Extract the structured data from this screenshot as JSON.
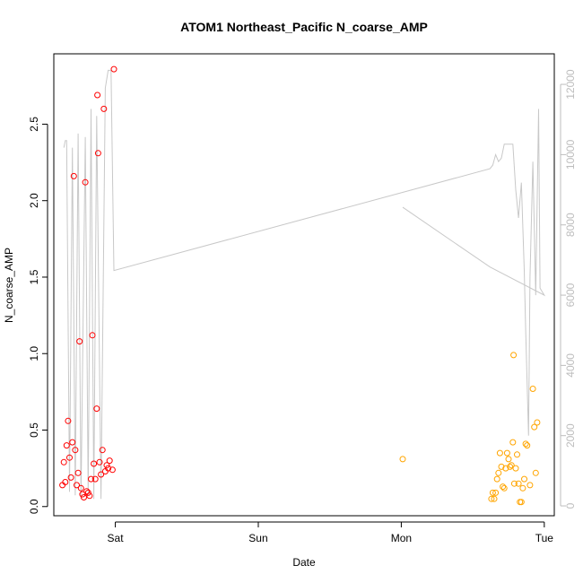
{
  "chart_data": {
    "type": "scatter",
    "title": "ATOM1 Northeast_Pacific N_coarse_AMP",
    "xlabel": "Date",
    "ylabel": "N_coarse_AMP",
    "x_ticks": [
      "Sat",
      "Sun",
      "Mon",
      "Tue"
    ],
    "x_tick_values": [
      2.0,
      3.0,
      4.0,
      5.0
    ],
    "xlim": [
      1.57,
      5.07
    ],
    "ylim": [
      -0.06,
      2.96
    ],
    "y_ticks": [
      "0.0",
      "0.5",
      "1.0",
      "1.5",
      "2.0",
      "2.5"
    ],
    "y_tick_values": [
      0.0,
      0.5,
      1.0,
      1.5,
      2.0,
      2.5
    ],
    "y2_ticks": [
      "0",
      "2000",
      "4000",
      "6000",
      "8000",
      "10000",
      "12000"
    ],
    "y2_tick_values": [
      0,
      2000,
      4000,
      6000,
      8000,
      10000,
      12000
    ],
    "y2lim": [
      -280,
      12870
    ],
    "grid": false,
    "series": [
      {
        "color": "#ff0000",
        "points": [
          [
            1.63,
            0.14
          ],
          [
            1.65,
            0.16
          ],
          [
            1.64,
            0.29
          ],
          [
            1.66,
            0.4
          ],
          [
            1.67,
            0.56
          ],
          [
            1.68,
            0.32
          ],
          [
            1.69,
            0.19
          ],
          [
            1.7,
            0.42
          ],
          [
            1.71,
            2.16
          ],
          [
            1.72,
            0.37
          ],
          [
            1.73,
            0.14
          ],
          [
            1.74,
            0.22
          ],
          [
            1.75,
            1.08
          ],
          [
            1.76,
            0.12
          ],
          [
            1.77,
            0.08
          ],
          [
            1.78,
            0.06
          ],
          [
            1.79,
            2.12
          ],
          [
            1.8,
            0.1
          ],
          [
            1.81,
            0.09
          ],
          [
            1.82,
            0.07
          ],
          [
            1.83,
            0.18
          ],
          [
            1.84,
            1.12
          ],
          [
            1.85,
            0.28
          ],
          [
            1.86,
            0.18
          ],
          [
            1.87,
            0.64
          ],
          [
            1.875,
            2.69
          ],
          [
            1.88,
            2.31
          ],
          [
            1.89,
            0.29
          ],
          [
            1.9,
            0.21
          ],
          [
            1.91,
            0.37
          ],
          [
            1.92,
            2.6
          ],
          [
            1.93,
            0.23
          ],
          [
            1.94,
            0.27
          ],
          [
            1.95,
            0.25
          ],
          [
            1.96,
            0.3
          ],
          [
            1.98,
            0.24
          ],
          [
            1.99,
            2.86
          ]
        ]
      },
      {
        "color": "#ffa500",
        "points": [
          [
            4.01,
            0.31
          ],
          [
            4.63,
            0.05
          ],
          [
            4.64,
            0.09
          ],
          [
            4.65,
            0.05
          ],
          [
            4.66,
            0.09
          ],
          [
            4.67,
            0.18
          ],
          [
            4.68,
            0.22
          ],
          [
            4.69,
            0.35
          ],
          [
            4.7,
            0.26
          ],
          [
            4.71,
            0.13
          ],
          [
            4.72,
            0.12
          ],
          [
            4.73,
            0.25
          ],
          [
            4.74,
            0.35
          ],
          [
            4.75,
            0.31
          ],
          [
            4.76,
            0.26
          ],
          [
            4.77,
            0.27
          ],
          [
            4.78,
            0.42
          ],
          [
            4.785,
            0.99
          ],
          [
            4.79,
            0.15
          ],
          [
            4.8,
            0.25
          ],
          [
            4.81,
            0.34
          ],
          [
            4.82,
            0.15
          ],
          [
            4.83,
            0.03
          ],
          [
            4.84,
            0.03
          ],
          [
            4.85,
            0.12
          ],
          [
            4.86,
            0.18
          ],
          [
            4.87,
            0.41
          ],
          [
            4.88,
            0.4
          ],
          [
            4.9,
            0.14
          ],
          [
            4.92,
            0.77
          ],
          [
            4.93,
            0.52
          ],
          [
            4.94,
            0.22
          ],
          [
            4.95,
            0.55
          ]
        ]
      }
    ],
    "secondary_line": {
      "color": "#c8c8c8",
      "points": [
        [
          1.64,
          10200
        ],
        [
          1.65,
          10400
        ],
        [
          1.66,
          10400
        ],
        [
          1.68,
          400
        ],
        [
          1.7,
          10200
        ],
        [
          1.72,
          300
        ],
        [
          1.74,
          10600
        ],
        [
          1.76,
          200
        ],
        [
          1.79,
          10500
        ],
        [
          1.81,
          300
        ],
        [
          1.83,
          11300
        ],
        [
          1.85,
          200
        ],
        [
          1.87,
          11100
        ],
        [
          1.9,
          200
        ],
        [
          1.93,
          11900
        ],
        [
          1.95,
          12400
        ],
        [
          1.97,
          12400
        ],
        [
          1.99,
          6700
        ],
        [
          4.62,
          9600
        ],
        [
          4.64,
          9700
        ],
        [
          4.66,
          10000
        ],
        [
          4.68,
          9800
        ],
        [
          4.7,
          9900
        ],
        [
          4.72,
          10300
        ],
        [
          4.78,
          10300
        ],
        [
          4.8,
          9000
        ],
        [
          4.82,
          8200
        ],
        [
          4.84,
          9200
        ],
        [
          4.86,
          6700
        ],
        [
          4.87,
          5000
        ],
        [
          4.88,
          3500
        ],
        [
          4.89,
          2000
        ],
        [
          4.9,
          6500
        ],
        [
          4.92,
          9800
        ],
        [
          4.94,
          6000
        ],
        [
          4.96,
          11300
        ],
        [
          4.97,
          6200
        ],
        [
          5.0,
          6000
        ],
        [
          4.62,
          6800
        ],
        [
          4.01,
          8500
        ]
      ]
    }
  }
}
